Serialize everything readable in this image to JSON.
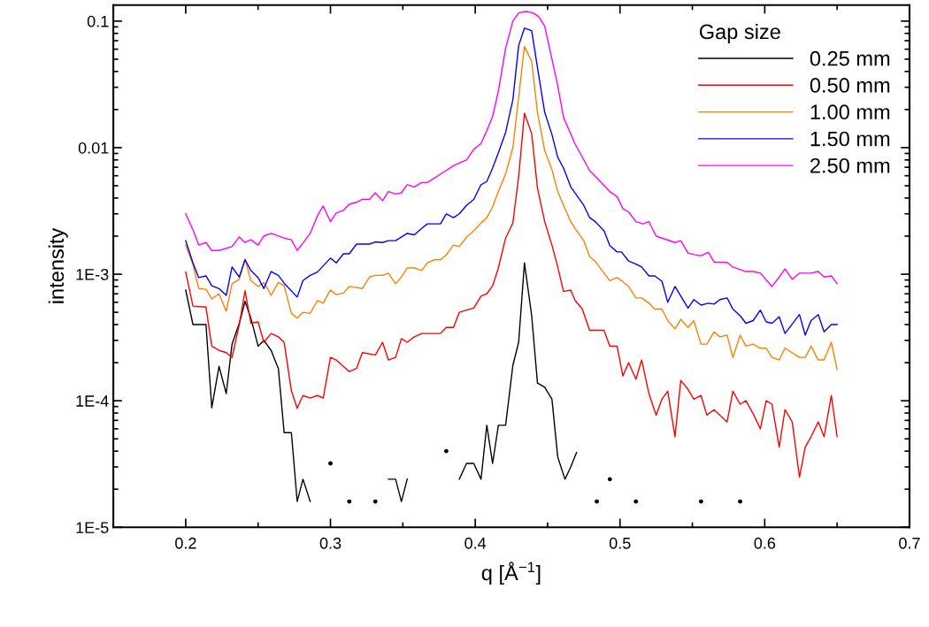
{
  "chart_data": {
    "type": "line",
    "xlabel": "q [Å$^{−1}$]",
    "ylabel": "intensity",
    "legend_title": "Gap size",
    "legend": "top right",
    "grid": false,
    "log": "y",
    "marker": "none",
    "line_style": "solid",
    "xlim": [
      0.15,
      0.7
    ],
    "xticks": [
      0.2,
      0.3,
      0.4,
      0.5,
      0.6,
      0.7
    ],
    "ylim": [
      1e-05,
      0.134
    ],
    "yticks": [
      0.1,
      0.01,
      {
        "value": 0.001,
        "label": "1E-3"
      },
      {
        "value": 0.0001,
        "label": "1E-4"
      },
      {
        "value": 1e-05,
        "label": "1E-5"
      }
    ],
    "series": [
      {
        "name": "0.25 mm",
        "color": "#000000",
        "x": [
          0.2,
          0.205,
          0.209,
          0.214,
          0.218,
          0.223,
          0.228,
          0.232,
          0.237,
          0.241,
          0.245,
          0.25,
          0.254,
          0.259,
          0.264,
          0.268,
          0.273,
          0.277,
          0.281,
          0.286,
          0.291,
          0.295,
          0.3,
          0.304,
          0.309,
          0.313,
          0.318,
          0.322,
          0.327,
          0.331,
          0.336,
          0.34,
          0.345,
          0.349,
          0.353,
          0.358,
          0.363,
          0.367,
          0.372,
          0.376,
          0.38,
          0.385,
          0.389,
          0.394,
          0.399,
          0.404,
          0.408,
          0.412,
          0.416,
          0.421,
          0.426,
          0.43,
          0.434,
          0.439,
          0.443,
          0.448,
          0.453,
          0.457,
          0.462,
          0.466,
          0.47,
          0.474,
          0.479,
          0.484,
          0.488,
          0.493,
          0.497,
          0.501,
          0.506,
          0.511,
          0.52,
          0.556,
          0.565,
          0.583
        ],
        "values": [
          0.00075,
          0.0004,
          0.0004,
          0.0004,
          8.8e-05,
          0.000187,
          0.000114,
          0.00028,
          0.00041,
          0.00061,
          0.00045,
          0.00027,
          0.0003,
          0.00025,
          0.00018,
          5.6e-05,
          5.6e-05,
          1.6e-05,
          2.4e-05,
          1.6e-05,
          null,
          null,
          3.2e-05,
          null,
          null,
          1.6e-05,
          null,
          null,
          null,
          1.6e-05,
          null,
          2.4e-05,
          2.4e-05,
          1.6e-05,
          2.4e-05,
          null,
          null,
          null,
          null,
          null,
          4e-05,
          null,
          2.4e-05,
          3.2e-05,
          3.2e-05,
          2.4e-05,
          6.4e-05,
          3.2e-05,
          6.4e-05,
          6.4e-05,
          0.00019,
          0.00029,
          0.00123,
          0.00047,
          0.000138,
          0.000128,
          0.000103,
          3.6e-05,
          2.4e-05,
          3e-05,
          3.9e-05,
          null,
          null,
          1.6e-05,
          null,
          2.4e-05,
          null,
          null,
          null,
          1.6e-05,
          null,
          1.6e-05,
          null,
          1.6e-05
        ]
      },
      {
        "name": "0.50 mm",
        "color": "#ff0000",
        "x": [
          0.2,
          0.205,
          0.214,
          0.218,
          0.223,
          0.228,
          0.232,
          0.237,
          0.241,
          0.245,
          0.25,
          0.254,
          0.259,
          0.264,
          0.268,
          0.273,
          0.277,
          0.281,
          0.286,
          0.291,
          0.295,
          0.3,
          0.304,
          0.313,
          0.318,
          0.322,
          0.331,
          0.336,
          0.34,
          0.345,
          0.349,
          0.353,
          0.358,
          0.363,
          0.367,
          0.372,
          0.376,
          0.38,
          0.385,
          0.389,
          0.394,
          0.399,
          0.404,
          0.408,
          0.412,
          0.416,
          0.421,
          0.426,
          0.43,
          0.434,
          0.439,
          0.443,
          0.448,
          0.453,
          0.457,
          0.461,
          0.466,
          0.469,
          0.474,
          0.479,
          0.489,
          0.493,
          0.498,
          0.502,
          0.506,
          0.511,
          0.515,
          0.52,
          0.525,
          0.529,
          0.533,
          0.538,
          0.542,
          0.547,
          0.551,
          0.556,
          0.56,
          0.565,
          0.569,
          0.574,
          0.578,
          0.583,
          0.587,
          0.592,
          0.597,
          0.601,
          0.605,
          0.61,
          0.614,
          0.619,
          0.624,
          0.628,
          0.632,
          0.637,
          0.641,
          0.646,
          0.65
        ],
        "values": [
          0.00104,
          0.00056,
          0.00055,
          0.00027,
          0.00025,
          0.00024,
          0.00022,
          0.0004,
          0.00074,
          0.00041,
          0.00042,
          0.00029,
          0.00034,
          0.00032,
          0.00029,
          0.00012,
          8.7e-05,
          0.00011,
          0.000105,
          0.00011,
          0.000105,
          0.00022,
          0.00021,
          0.00017,
          0.00018,
          0.00024,
          0.00023,
          0.00029,
          0.00021,
          0.00022,
          0.00031,
          0.00029,
          0.00032,
          0.00034,
          0.00034,
          0.00034,
          0.00034,
          0.00038,
          0.00038,
          0.0005,
          0.00052,
          0.00054,
          0.00067,
          0.0007,
          0.00081,
          0.00112,
          0.00193,
          0.00254,
          0.0059,
          0.0187,
          0.0129,
          0.0048,
          0.0026,
          0.0017,
          0.00114,
          0.00073,
          0.00075,
          0.00062,
          0.00053,
          0.00036,
          0.00036,
          0.00027,
          0.00027,
          0.000157,
          0.0002,
          0.000148,
          0.00021,
          0.000114,
          7.7e-05,
          0.000103,
          0.000119,
          5.2e-05,
          0.000145,
          0.000123,
          0.000103,
          0.00011,
          7.7e-05,
          8.5e-05,
          7.7e-05,
          6.8e-05,
          0.000119,
          9.4e-05,
          0.0001,
          7.9e-05,
          6e-05,
          0.0001,
          9.4e-05,
          4.3e-05,
          8.5e-05,
          6.8e-05,
          2.5e-05,
          4.3e-05,
          5.2e-05,
          6.8e-05,
          5.2e-05,
          0.00011,
          5.2e-05
        ]
      },
      {
        "name": "1.00 mm",
        "color": "#ff8000",
        "x": [
          0.2,
          0.205,
          0.209,
          0.214,
          0.218,
          0.223,
          0.228,
          0.232,
          0.237,
          0.241,
          0.245,
          0.25,
          0.254,
          0.259,
          0.264,
          0.268,
          0.273,
          0.277,
          0.281,
          0.286,
          0.291,
          0.295,
          0.3,
          0.304,
          0.309,
          0.313,
          0.322,
          0.327,
          0.331,
          0.336,
          0.34,
          0.345,
          0.349,
          0.353,
          0.358,
          0.363,
          0.367,
          0.372,
          0.376,
          0.38,
          0.385,
          0.389,
          0.394,
          0.399,
          0.404,
          0.408,
          0.412,
          0.416,
          0.421,
          0.426,
          0.43,
          0.434,
          0.439,
          0.443,
          0.448,
          0.453,
          0.457,
          0.461,
          0.466,
          0.469,
          0.475,
          0.479,
          0.483,
          0.489,
          0.493,
          0.498,
          0.501,
          0.506,
          0.511,
          0.515,
          0.52,
          0.524,
          0.529,
          0.533,
          0.538,
          0.542,
          0.547,
          0.551,
          0.556,
          0.56,
          0.565,
          0.569,
          0.574,
          0.578,
          0.583,
          0.587,
          0.592,
          0.597,
          0.601,
          0.605,
          0.61,
          0.614,
          0.624,
          0.628,
          0.632,
          0.637,
          0.641,
          0.646,
          0.65
        ],
        "values": [
          0.0017,
          0.00119,
          0.00077,
          0.00076,
          0.00064,
          0.0007,
          0.00051,
          0.00084,
          0.00091,
          0.00132,
          0.00089,
          0.0008,
          0.00086,
          0.00068,
          0.00086,
          0.00081,
          0.00049,
          0.00045,
          0.0005,
          0.00049,
          0.00062,
          0.00059,
          0.00075,
          0.00069,
          0.00071,
          0.0008,
          0.00077,
          0.00095,
          0.00098,
          0.00098,
          0.00102,
          0.00084,
          0.00095,
          0.00112,
          0.00112,
          0.00107,
          0.00123,
          0.0013,
          0.0013,
          0.00142,
          0.0017,
          0.00165,
          0.00196,
          0.0022,
          0.00254,
          0.0028,
          0.0034,
          0.0045,
          0.0062,
          0.01,
          0.025,
          0.063,
          0.048,
          0.019,
          0.0095,
          0.0067,
          0.0045,
          0.0035,
          0.0026,
          0.0023,
          0.00184,
          0.00138,
          0.00126,
          0.00102,
          0.00089,
          0.00094,
          0.00089,
          0.0008,
          0.00065,
          0.00065,
          0.00059,
          0.00053,
          0.00053,
          0.00043,
          0.00037,
          0.00044,
          0.00038,
          0.00043,
          0.00028,
          0.00028,
          0.00035,
          0.00032,
          0.00033,
          0.00022,
          0.00033,
          0.00027,
          0.00028,
          0.00026,
          0.00026,
          0.00022,
          0.00021,
          0.00026,
          0.00022,
          0.00022,
          0.00027,
          0.00021,
          0.00021,
          0.00029,
          0.000176
        ]
      },
      {
        "name": "1.50 mm",
        "color": "#0000ff",
        "x": [
          0.2,
          0.205,
          0.209,
          0.214,
          0.218,
          0.223,
          0.228,
          0.232,
          0.237,
          0.241,
          0.245,
          0.25,
          0.254,
          0.259,
          0.264,
          0.268,
          0.277,
          0.281,
          0.286,
          0.291,
          0.3,
          0.304,
          0.309,
          0.313,
          0.318,
          0.327,
          0.331,
          0.336,
          0.34,
          0.345,
          0.353,
          0.358,
          0.363,
          0.367,
          0.376,
          0.38,
          0.385,
          0.389,
          0.394,
          0.399,
          0.404,
          0.408,
          0.412,
          0.416,
          0.421,
          0.426,
          0.43,
          0.434,
          0.439,
          0.443,
          0.448,
          0.453,
          0.457,
          0.461,
          0.466,
          0.475,
          0.479,
          0.483,
          0.489,
          0.493,
          0.498,
          0.501,
          0.506,
          0.511,
          0.515,
          0.52,
          0.524,
          0.529,
          0.533,
          0.538,
          0.547,
          0.551,
          0.556,
          0.561,
          0.565,
          0.569,
          0.574,
          0.578,
          0.583,
          0.587,
          0.592,
          0.597,
          0.601,
          0.605,
          0.61,
          0.614,
          0.624,
          0.628,
          0.632,
          0.637,
          0.641,
          0.646,
          0.65
        ],
        "values": [
          0.00184,
          0.00123,
          0.00094,
          0.00097,
          0.00081,
          0.00077,
          0.00068,
          0.00114,
          0.00095,
          0.0013,
          0.00107,
          0.00094,
          0.00077,
          0.00105,
          0.00098,
          0.00085,
          0.00066,
          0.00089,
          0.00098,
          0.00104,
          0.00134,
          0.00123,
          0.00145,
          0.00145,
          0.00173,
          0.00173,
          0.0018,
          0.00178,
          0.00184,
          0.00184,
          0.0021,
          0.00205,
          0.0023,
          0.0025,
          0.0025,
          0.003,
          0.0028,
          0.003,
          0.0035,
          0.0039,
          0.0051,
          0.0054,
          0.0069,
          0.0091,
          0.0132,
          0.0239,
          0.064,
          0.088,
          0.084,
          0.043,
          0.019,
          0.0127,
          0.0084,
          0.0069,
          0.0049,
          0.0035,
          0.0028,
          0.0026,
          0.0022,
          0.00168,
          0.0015,
          0.0015,
          0.00127,
          0.0012,
          0.00114,
          0.00097,
          0.00097,
          0.00088,
          0.0006,
          0.0008,
          0.00054,
          0.00063,
          0.00057,
          0.00059,
          0.00058,
          0.00063,
          0.00065,
          0.00053,
          0.00047,
          0.00041,
          0.00043,
          0.00052,
          0.00042,
          0.00041,
          0.00046,
          0.00034,
          0.00048,
          0.00033,
          0.00043,
          0.00048,
          0.00035,
          0.0004,
          0.0004
        ]
      },
      {
        "name": "2.50 mm",
        "color": "#ff00ff",
        "x": [
          0.2,
          0.205,
          0.209,
          0.214,
          0.218,
          0.223,
          0.232,
          0.237,
          0.241,
          0.245,
          0.25,
          0.254,
          0.259,
          0.268,
          0.273,
          0.277,
          0.281,
          0.286,
          0.291,
          0.295,
          0.3,
          0.304,
          0.309,
          0.313,
          0.318,
          0.322,
          0.327,
          0.331,
          0.336,
          0.34,
          0.345,
          0.349,
          0.353,
          0.358,
          0.363,
          0.367,
          0.38,
          0.385,
          0.394,
          0.399,
          0.404,
          0.408,
          0.412,
          0.416,
          0.421,
          0.426,
          0.43,
          0.435,
          0.44,
          0.444,
          0.448,
          0.453,
          0.457,
          0.461,
          0.469,
          0.479,
          0.493,
          0.498,
          0.502,
          0.506,
          0.511,
          0.516,
          0.52,
          0.525,
          0.538,
          0.542,
          0.547,
          0.551,
          0.556,
          0.561,
          0.565,
          0.574,
          0.578,
          0.587,
          0.592,
          0.597,
          0.605,
          0.61,
          0.614,
          0.619,
          0.624,
          0.632,
          0.637,
          0.641,
          0.646,
          0.65
        ],
        "values": [
          0.003,
          0.00224,
          0.0017,
          0.00178,
          0.00154,
          0.00154,
          0.00165,
          0.00197,
          0.00178,
          0.00187,
          0.0017,
          0.002,
          0.0021,
          0.00193,
          0.00187,
          0.00154,
          0.00176,
          0.0021,
          0.0029,
          0.00346,
          0.0026,
          0.00304,
          0.0032,
          0.00357,
          0.0037,
          0.0039,
          0.0039,
          0.0044,
          0.0038,
          0.0045,
          0.0043,
          0.0044,
          0.0051,
          0.0049,
          0.0053,
          0.0053,
          0.0066,
          0.0072,
          0.008,
          0.0097,
          0.0108,
          0.0136,
          0.0176,
          0.028,
          0.061,
          0.1,
          0.116,
          0.119,
          0.116,
          0.108,
          0.091,
          0.05,
          0.031,
          0.0173,
          0.0107,
          0.0066,
          0.0045,
          0.0041,
          0.0033,
          0.0031,
          0.0026,
          0.0025,
          0.0026,
          0.002,
          0.00178,
          0.00184,
          0.00147,
          0.00143,
          0.0014,
          0.00149,
          0.00125,
          0.00124,
          0.00114,
          0.00105,
          0.00105,
          0.00102,
          0.0008,
          0.00095,
          0.0011,
          0.00091,
          0.00102,
          0.00102,
          0.00105,
          0.00095,
          0.00097,
          0.00084
        ]
      }
    ]
  }
}
